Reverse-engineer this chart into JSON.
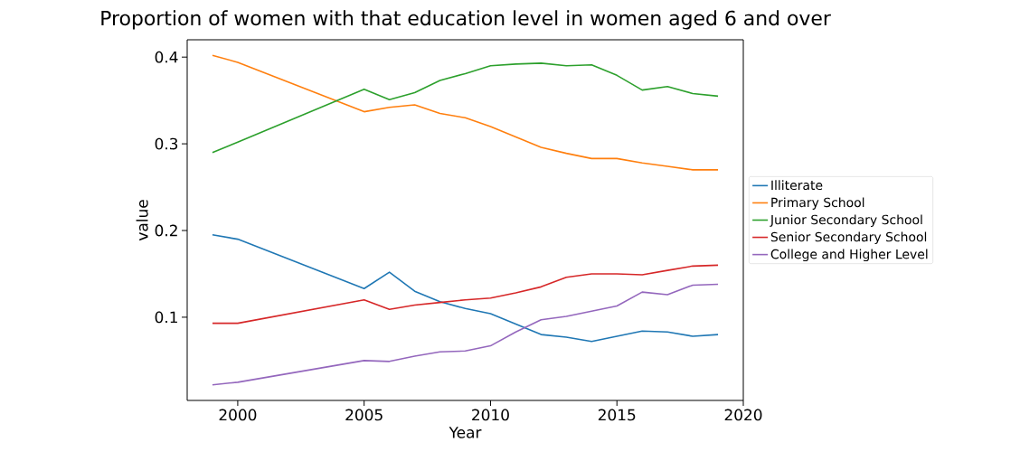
{
  "chart_data": {
    "type": "line",
    "title": "Proportion of women with that education level in women aged 6 and over",
    "xlabel": "Year",
    "ylabel": "value",
    "x": [
      1999,
      2000,
      2005,
      2006,
      2007,
      2008,
      2009,
      2010,
      2011,
      2012,
      2013,
      2014,
      2015,
      2016,
      2017,
      2018,
      2019
    ],
    "series": [
      {
        "name": "Illiterate",
        "color": "#1f77b4",
        "values": [
          0.195,
          0.19,
          0.133,
          0.152,
          0.13,
          0.118,
          0.11,
          0.104,
          0.092,
          0.08,
          0.077,
          0.072,
          0.078,
          0.084,
          0.083,
          0.078,
          0.08
        ]
      },
      {
        "name": "Primary School",
        "color": "#ff7f0e",
        "values": [
          0.402,
          0.394,
          0.337,
          0.342,
          0.345,
          0.335,
          0.33,
          0.32,
          0.308,
          0.296,
          0.289,
          0.283,
          0.283,
          0.278,
          0.274,
          0.27,
          0.27
        ]
      },
      {
        "name": "Junior Secondary School",
        "color": "#2ca02c",
        "values": [
          0.29,
          0.302,
          0.363,
          0.351,
          0.359,
          0.373,
          0.381,
          0.39,
          0.392,
          0.393,
          0.39,
          0.391,
          0.379,
          0.362,
          0.366,
          0.358,
          0.355
        ]
      },
      {
        "name": "Senior Secondary School",
        "color": "#d62728",
        "values": [
          0.093,
          0.093,
          0.12,
          0.109,
          0.114,
          0.117,
          0.12,
          0.122,
          0.128,
          0.135,
          0.146,
          0.15,
          0.15,
          0.149,
          0.154,
          0.159,
          0.16
        ]
      },
      {
        "name": "College and Higher Level",
        "color": "#9467bd",
        "values": [
          0.022,
          0.025,
          0.05,
          0.049,
          0.055,
          0.06,
          0.061,
          0.067,
          0.083,
          0.097,
          0.101,
          0.107,
          0.113,
          0.129,
          0.126,
          0.137,
          0.138
        ]
      }
    ],
    "xlim": [
      1998,
      2020
    ],
    "ylim": [
      0.004,
      0.42
    ],
    "xticks": [
      2000,
      2005,
      2010,
      2015,
      2020
    ],
    "yticks": [
      0.1,
      0.2,
      0.3,
      0.4
    ],
    "legend": "right",
    "line_style": "solid"
  }
}
